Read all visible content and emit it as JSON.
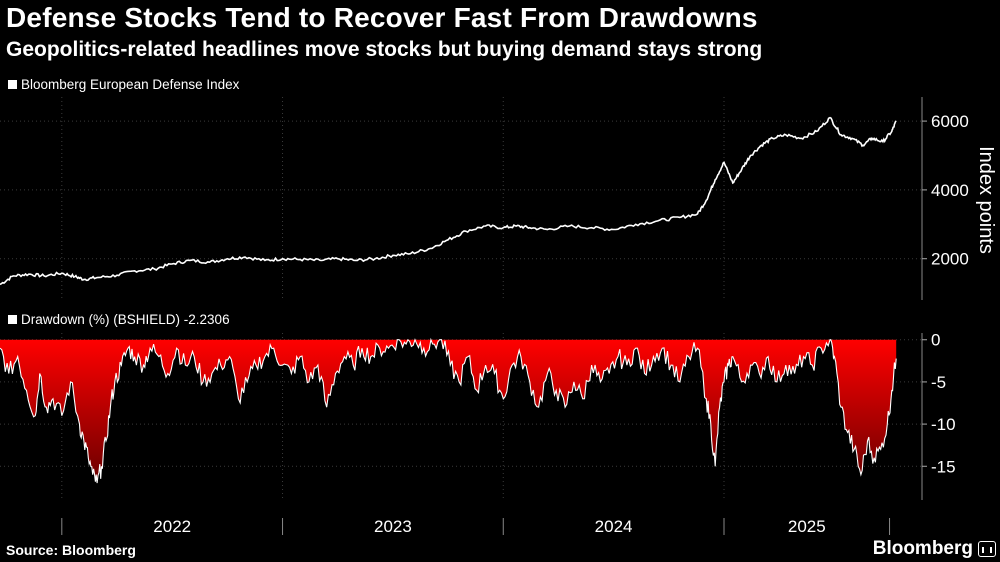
{
  "header": {
    "title": "Defense Stocks Tend to Recover Fast From Drawdowns",
    "subtitle": "Geopolitics-related headlines move stocks but buying demand stays strong"
  },
  "footer": {
    "source": "Source: Bloomberg",
    "brand": "Bloomberg",
    "brand_icon": "bloomberg-terminal-icon"
  },
  "colors": {
    "background": "#000000",
    "line": "#ffffff",
    "drawdown_fill_top": "#ff0000",
    "drawdown_fill_bottom": "#6a0000",
    "grid": "#3a3a3a"
  },
  "chart_data": [
    {
      "type": "line",
      "legend": "Bloomberg European Defense Index",
      "ylabel": "Index points",
      "ylim": [
        800,
        6700
      ],
      "yticks": [
        2000,
        4000,
        6000
      ],
      "xlim": [
        2021.72,
        2025.82
      ],
      "grid": true,
      "series": [
        {
          "name": "Bloomberg European Defense Index",
          "x": [
            2021.72,
            2021.78,
            2021.85,
            2021.92,
            2022.0,
            2022.06,
            2022.1,
            2022.16,
            2022.25,
            2022.33,
            2022.42,
            2022.5,
            2022.58,
            2022.67,
            2022.75,
            2022.83,
            2022.92,
            2023.0,
            2023.08,
            2023.17,
            2023.25,
            2023.33,
            2023.42,
            2023.5,
            2023.58,
            2023.67,
            2023.75,
            2023.83,
            2023.92,
            2024.0,
            2024.06,
            2024.12,
            2024.2,
            2024.3,
            2024.4,
            2024.5,
            2024.6,
            2024.7,
            2024.8,
            2024.88,
            2024.92,
            2024.96,
            2025.0,
            2025.04,
            2025.08,
            2025.12,
            2025.17,
            2025.22,
            2025.28,
            2025.35,
            2025.42,
            2025.48,
            2025.53,
            2025.58,
            2025.63,
            2025.67,
            2025.72,
            2025.76,
            2025.78
          ],
          "values": [
            1250,
            1500,
            1550,
            1500,
            1580,
            1480,
            1400,
            1450,
            1520,
            1650,
            1700,
            1850,
            1950,
            1900,
            2000,
            2050,
            1950,
            2000,
            1980,
            1950,
            2000,
            1950,
            2000,
            2100,
            2150,
            2300,
            2550,
            2800,
            2950,
            2900,
            2950,
            2900,
            2850,
            2950,
            2900,
            2850,
            3000,
            3100,
            3200,
            3300,
            3700,
            4300,
            4800,
            4200,
            4600,
            5000,
            5300,
            5500,
            5600,
            5500,
            5700,
            6100,
            5600,
            5500,
            5300,
            5500,
            5400,
            5700,
            6000
          ]
        }
      ]
    },
    {
      "type": "area",
      "legend": "Drawdown (%) (BSHIELD) -2.2306",
      "ylim": [
        -19,
        0.8
      ],
      "yticks": [
        0,
        -5,
        -10,
        -15
      ],
      "xlim": [
        2021.72,
        2025.82
      ],
      "xticks": [
        "2022",
        "2023",
        "2024",
        "2025"
      ],
      "grid": true,
      "series": [
        {
          "name": "Drawdown (%) (BSHIELD)",
          "x": [
            2021.72,
            2021.76,
            2021.8,
            2021.84,
            2021.88,
            2021.9,
            2021.93,
            2021.96,
            2022.0,
            2022.04,
            2022.08,
            2022.1,
            2022.12,
            2022.14,
            2022.16,
            2022.18,
            2022.2,
            2022.22,
            2022.24,
            2022.27,
            2022.3,
            2022.33,
            2022.37,
            2022.4,
            2022.44,
            2022.48,
            2022.52,
            2022.56,
            2022.6,
            2022.64,
            2022.68,
            2022.72,
            2022.76,
            2022.8,
            2022.84,
            2022.88,
            2022.92,
            2022.96,
            2023.0,
            2023.04,
            2023.08,
            2023.12,
            2023.16,
            2023.2,
            2023.24,
            2023.28,
            2023.32,
            2023.36,
            2023.4,
            2023.44,
            2023.48,
            2023.52,
            2023.56,
            2023.6,
            2023.64,
            2023.68,
            2023.72,
            2023.76,
            2023.8,
            2023.84,
            2023.88,
            2023.92,
            2023.96,
            2024.0,
            2024.04,
            2024.08,
            2024.12,
            2024.16,
            2024.2,
            2024.24,
            2024.28,
            2024.32,
            2024.36,
            2024.4,
            2024.44,
            2024.48,
            2024.52,
            2024.56,
            2024.6,
            2024.64,
            2024.68,
            2024.72,
            2024.76,
            2024.8,
            2024.84,
            2024.88,
            2024.92,
            2024.94,
            2024.96,
            2024.98,
            2025.0,
            2025.02,
            2025.04,
            2025.08,
            2025.12,
            2025.16,
            2025.2,
            2025.24,
            2025.28,
            2025.32,
            2025.36,
            2025.4,
            2025.44,
            2025.48,
            2025.5,
            2025.53,
            2025.56,
            2025.59,
            2025.62,
            2025.65,
            2025.68,
            2025.71,
            2025.74,
            2025.76,
            2025.78
          ],
          "values": [
            -1,
            -4,
            -2,
            -6,
            -9,
            -4,
            -8,
            -7,
            -9,
            -5,
            -10,
            -12,
            -14,
            -16,
            -17,
            -15,
            -12,
            -8,
            -5,
            -3,
            -1,
            -2,
            -3,
            -1,
            -2,
            -4,
            -1,
            -3,
            -2,
            -5,
            -4,
            -3,
            -2,
            -7,
            -5,
            -3,
            -2,
            -1,
            -3,
            -4,
            -2,
            -5,
            -3,
            -8,
            -4,
            -2,
            -3,
            -1,
            -2,
            -1,
            -1,
            0,
            -0.5,
            0,
            -1,
            -0.5,
            0,
            -3,
            -5,
            -2,
            -6,
            -3,
            -4,
            -7,
            -3,
            -2,
            -5,
            -8,
            -4,
            -6,
            -8,
            -5,
            -7,
            -3,
            -5,
            -4,
            -2,
            -3,
            -1,
            -4,
            -2,
            -1,
            -3,
            -5,
            -2,
            -1,
            -7,
            -10,
            -15,
            -8,
            -5,
            -3,
            -2,
            -5,
            -3,
            -4,
            -2,
            -5,
            -3,
            -4,
            -2,
            -3,
            -1,
            0,
            -2,
            -8,
            -11,
            -13,
            -16,
            -12,
            -14,
            -13,
            -10,
            -6,
            -2.2306
          ]
        }
      ]
    }
  ]
}
